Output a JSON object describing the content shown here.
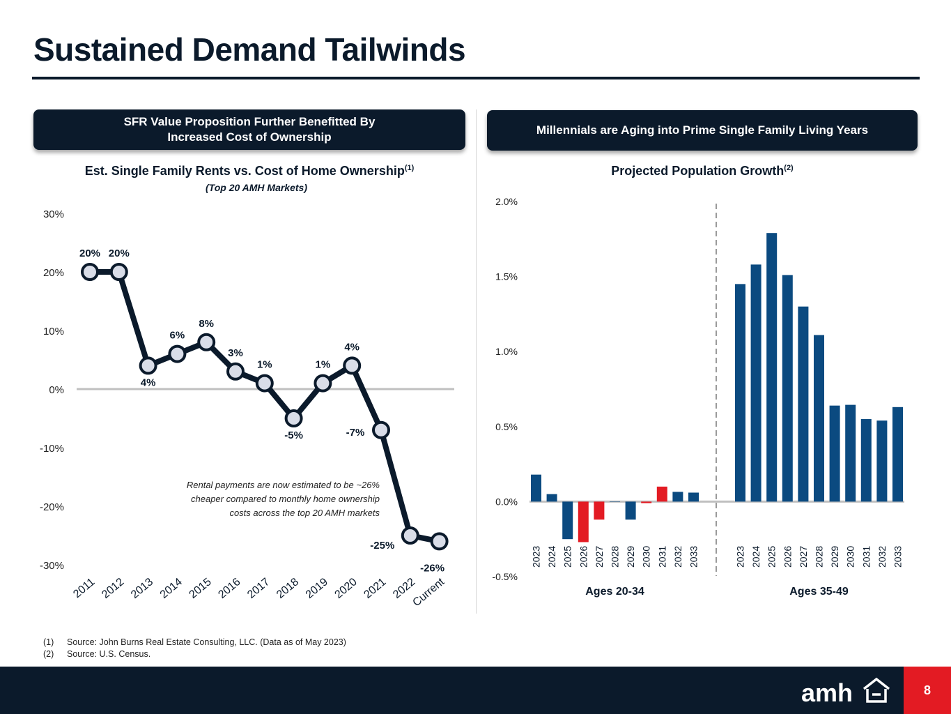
{
  "page": {
    "title": "Sustained Demand Tailwinds",
    "page_number": "8",
    "logo_text": "amh"
  },
  "left_panel": {
    "banner_line1": "SFR Value Proposition Further Benefitted By",
    "banner_line2": "Increased Cost of Ownership",
    "chart_title": "Est. Single Family Rents vs. Cost of Home Ownership",
    "chart_title_sup": "(1)",
    "chart_subtitle": "(Top 20 AMH Markets)",
    "annotation": [
      "Rental payments are now estimated to be ~26%",
      "cheaper compared to monthly home ownership",
      "costs across the top 20 AMH markets"
    ]
  },
  "right_panel": {
    "banner": "Millennials are Aging into Prime Single Family Living Years",
    "chart_title": "Projected Population Growth",
    "chart_title_sup": "(2)"
  },
  "chart_data": [
    {
      "type": "line",
      "title": "Est. Single Family Rents vs. Cost of Home Ownership",
      "categories": [
        "2011",
        "2012",
        "2013",
        "2014",
        "2015",
        "2016",
        "2017",
        "2018",
        "2019",
        "2020",
        "2021",
        "2022",
        "Current"
      ],
      "values": [
        20,
        20,
        4,
        6,
        8,
        3,
        1,
        -5,
        1,
        4,
        -7,
        -25,
        -26
      ],
      "data_labels": [
        "20%",
        "20%",
        "4%",
        "6%",
        "8%",
        "3%",
        "1%",
        "-5%",
        "1%",
        "4%",
        "-7%",
        "-25%",
        "-26%"
      ],
      "y_ticks": [
        "30%",
        "20%",
        "10%",
        "0%",
        "-10%",
        "-20%",
        "-30%"
      ],
      "ylim": [
        -30,
        30
      ],
      "colors": {
        "line": "#0b1a2b",
        "marker_fill": "#d9dde8",
        "zero_line": "#c0c0c0"
      }
    },
    {
      "type": "bar",
      "title": "Projected Population Growth",
      "y_ticks": [
        "2.0%",
        "1.5%",
        "1.0%",
        "0.5%",
        "0.0%",
        "-0.5%"
      ],
      "ylim": [
        -0.5,
        2.0
      ],
      "groups": [
        {
          "name": "Ages 20-34",
          "categories": [
            "2023",
            "2024",
            "2025",
            "2026",
            "2027",
            "2028",
            "2029",
            "2030",
            "2031",
            "2032",
            "2033"
          ],
          "values": [
            0.18,
            0.05,
            -0.25,
            -0.27,
            -0.12,
            0.0,
            -0.12,
            -0.01,
            0.1,
            0.065,
            0.06
          ],
          "colors": [
            "#0b4a80",
            "#0b4a80",
            "#0b4a80",
            "#e31b23",
            "#e31b23",
            "#0b4a80",
            "#0b4a80",
            "#e31b23",
            "#e31b23",
            "#0b4a80",
            "#0b4a80"
          ]
        },
        {
          "name": "Ages 35-49",
          "categories": [
            "2023",
            "2024",
            "2025",
            "2026",
            "2027",
            "2028",
            "2029",
            "2030",
            "2031",
            "2032",
            "2033"
          ],
          "values": [
            1.45,
            1.58,
            1.79,
            1.51,
            1.3,
            1.11,
            0.64,
            0.645,
            0.55,
            0.54,
            0.63
          ],
          "colors": [
            "#0b4a80",
            "#0b4a80",
            "#0b4a80",
            "#0b4a80",
            "#0b4a80",
            "#0b4a80",
            "#0b4a80",
            "#0b4a80",
            "#0b4a80",
            "#0b4a80",
            "#0b4a80"
          ]
        }
      ]
    }
  ],
  "footnotes": [
    {
      "num": "(1)",
      "text": "Source: John Burns Real Estate Consulting, LLC. (Data as of May 2023)"
    },
    {
      "num": "(2)",
      "text": "Source: U.S. Census."
    }
  ]
}
